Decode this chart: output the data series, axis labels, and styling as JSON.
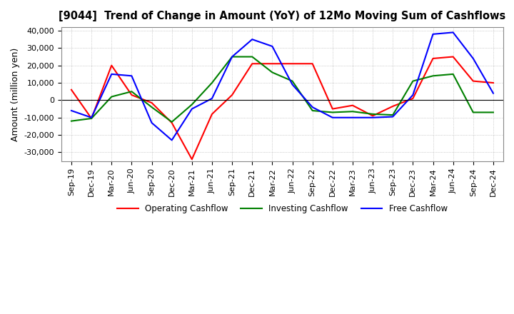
{
  "title": "[9044]  Trend of Change in Amount (YoY) of 12Mo Moving Sum of Cashflows",
  "ylabel": "Amount (million yen)",
  "ylim": [
    -35000,
    42000
  ],
  "yticks": [
    -30000,
    -20000,
    -10000,
    0,
    10000,
    20000,
    30000,
    40000
  ],
  "x_labels": [
    "Sep-19",
    "Dec-19",
    "Mar-20",
    "Jun-20",
    "Sep-20",
    "Dec-20",
    "Mar-21",
    "Jun-21",
    "Sep-21",
    "Dec-21",
    "Mar-22",
    "Jun-22",
    "Sep-22",
    "Dec-22",
    "Mar-23",
    "Jun-23",
    "Sep-23",
    "Dec-23",
    "Mar-24",
    "Jun-24",
    "Sep-24",
    "Dec-24"
  ],
  "operating": [
    6000,
    -10500,
    20000,
    3000,
    -1500,
    -13000,
    -34000,
    -8000,
    3000,
    21000,
    21000,
    21000,
    21000,
    -5000,
    -3000,
    -9000,
    -3500,
    1000,
    24000,
    25000,
    11000,
    10000
  ],
  "investing": [
    -12000,
    -10500,
    2000,
    5000,
    -4000,
    -12500,
    -2500,
    10000,
    25000,
    25000,
    16000,
    11000,
    -6000,
    -7000,
    -6500,
    -8000,
    -8500,
    11000,
    14000,
    15000,
    -7000,
    -7000
  ],
  "free": [
    -6000,
    -10000,
    15000,
    14000,
    -13000,
    -23000,
    -5000,
    1000,
    25000,
    35000,
    31000,
    9000,
    -4000,
    -10000,
    -10000,
    -10000,
    -9500,
    3000,
    38000,
    39000,
    24000,
    4000
  ],
  "operating_color": "#ff0000",
  "investing_color": "#008000",
  "free_color": "#0000ff",
  "background_color": "#ffffff",
  "grid_color": "#aaaaaa",
  "title_fontsize": 10.5,
  "tick_fontsize": 8,
  "ylabel_fontsize": 9
}
